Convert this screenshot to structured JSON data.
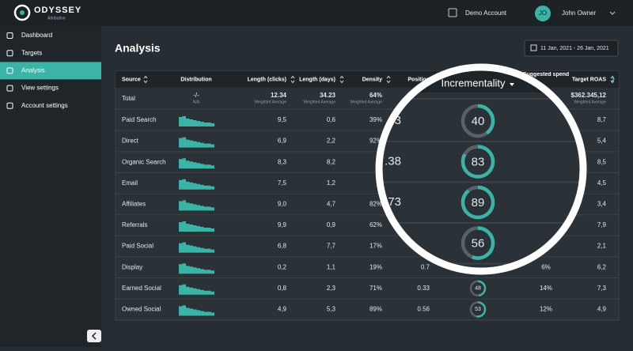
{
  "header": {
    "brand": "ODYSSEY",
    "brand_sub": "Attribution",
    "account": "Demo Account",
    "avatar": "JO",
    "user": "John Owner"
  },
  "nav": {
    "items": [
      "Dashboard",
      "Targets",
      "Analysis",
      "View settings",
      "Account settings"
    ],
    "active": "Analysis"
  },
  "page": {
    "title": "Analysis",
    "date_range": "11 Jan, 2021 - 26 Jan, 2021"
  },
  "table": {
    "columns": [
      "Source",
      "Distribution",
      "Length (clicks)",
      "Length (days)",
      "Density",
      "Position",
      "Incrementality",
      "Suggested spend",
      "Target ROAS"
    ],
    "total": {
      "source": "Total",
      "distribution": "-/-",
      "distribution_note": "N/A",
      "clicks": "12.34",
      "days": "34.23",
      "density": "64%",
      "roas": "$362.345,12",
      "note": "Weighted Average"
    },
    "rows": [
      {
        "source": "Paid Search",
        "clicks": "9,5",
        "days": "0,6",
        "density": "39%",
        "roas": "8,7"
      },
      {
        "source": "Direct",
        "clicks": "6,9",
        "days": "2,2",
        "density": "92%",
        "roas": "5,4"
      },
      {
        "source": "Organic Search",
        "clicks": "8,3",
        "days": "8,2",
        "roas": "8,5"
      },
      {
        "source": "Email",
        "clicks": "7,5",
        "days": "1,2",
        "roas": "4,5"
      },
      {
        "source": "Affiliates",
        "clicks": "9,0",
        "days": "4,7",
        "density": "82%",
        "roas": "3,4"
      },
      {
        "source": "Referrals",
        "clicks": "9,9",
        "days": "0,9",
        "density": "62%",
        "roas": "7,9"
      },
      {
        "source": "Paid Social",
        "clicks": "6,8",
        "days": "7,7",
        "density": "17%",
        "roas": "2,1"
      },
      {
        "source": "Display",
        "clicks": "0,2",
        "days": "1,1",
        "density": "19%",
        "position": "0.7",
        "spend": "6%",
        "roas": "6,2"
      },
      {
        "source": "Earned Social",
        "clicks": "0,8",
        "days": "2,3",
        "density": "71%",
        "position": "0.33",
        "incrementality": 48,
        "spend": "14%",
        "roas": "7,3"
      },
      {
        "source": "Owned Social",
        "clicks": "4,9",
        "days": "5,3",
        "density": "89%",
        "position": "0.56",
        "incrementality": 53,
        "spend": "12%",
        "roas": "4,9"
      }
    ]
  },
  "magnifier": {
    "header": "Incrementality",
    "rows": [
      {
        "left": "3",
        "value": 40
      },
      {
        "left": ".38",
        "value": 83
      },
      {
        "left": "73",
        "value": 89
      },
      {
        "value": 56
      }
    ]
  }
}
